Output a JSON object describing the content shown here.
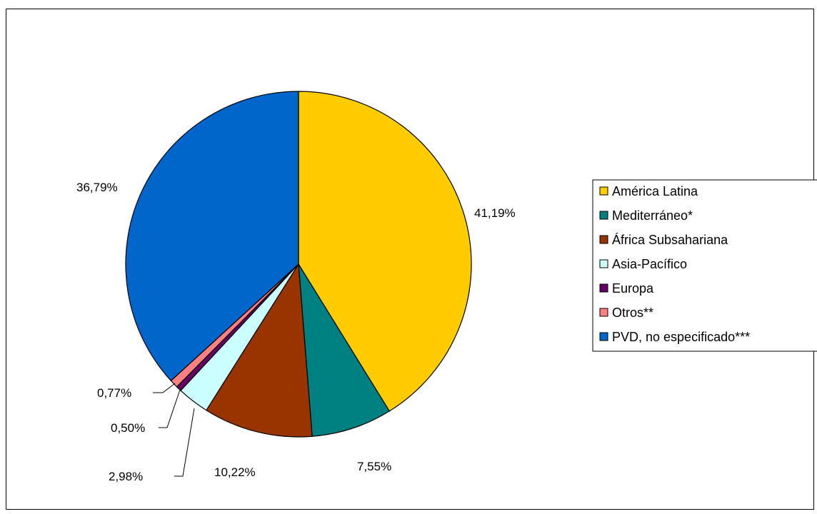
{
  "chart_data": {
    "type": "pie",
    "title": "",
    "legend_position": "right",
    "slices": [
      {
        "label": "América Latina",
        "value": 41.19,
        "display": "41,19%",
        "color": "#FFCC00"
      },
      {
        "label": "Mediterráneo*",
        "value": 7.55,
        "display": "7,55%",
        "color": "#008080"
      },
      {
        "label": "África Subsahariana",
        "value": 10.22,
        "display": "10,22%",
        "color": "#993300"
      },
      {
        "label": "Asia-Pacífico",
        "value": 2.98,
        "display": "2,98%",
        "color": "#CCFFFF"
      },
      {
        "label": "Europa",
        "value": 0.5,
        "display": "0,50%",
        "color": "#660066"
      },
      {
        "label": "Otros**",
        "value": 0.77,
        "display": "0,77%",
        "color": "#FF8080"
      },
      {
        "label": "PVD, no especificado***",
        "value": 36.79,
        "display": "36,79%",
        "color": "#0066CC"
      }
    ]
  }
}
